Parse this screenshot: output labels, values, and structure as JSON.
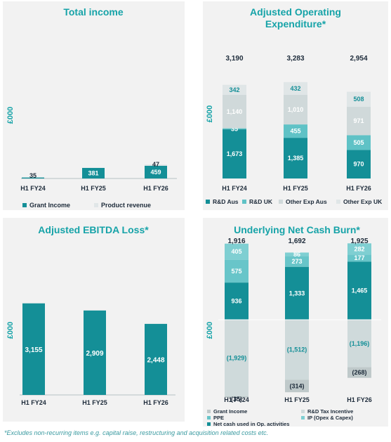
{
  "footnote": "*Excludes non-recurring items e.g. capital raise, restructuring and acquisition related costs etc.",
  "colors": {
    "title": "#16a3a8",
    "teal_dark": "#148f97",
    "teal_mid": "#5fc2c6",
    "light_grey": "#d0d9da",
    "lighter_grey": "#e0e6e7",
    "grey_neg": "#cfdadb",
    "grey_neg_small": "#bfc9ca",
    "text_dark": "#1d2b3a"
  },
  "chart_data": [
    {
      "type": "bar",
      "title": "Total income",
      "ylabel": "£000",
      "categories": [
        "H1 FY24",
        "H1 FY25",
        "H1 FY26"
      ],
      "series": [
        {
          "name": "Grant Income",
          "values": [
            35,
            381,
            459
          ]
        },
        {
          "name": "Product revenue",
          "values": [
            0,
            0,
            47
          ]
        }
      ],
      "labels": [
        [
          "35",
          "381",
          "459"
        ],
        [
          "",
          "",
          "47"
        ]
      ],
      "ylim": [
        0,
        3300
      ],
      "legend": "bottom"
    },
    {
      "type": "bar",
      "title": "Adjusted Operating Expenditure*",
      "ylabel": "£000",
      "categories": [
        "H1 FY24",
        "H1 FY25",
        "H1 FY26"
      ],
      "totals": [
        "3,190",
        "3,283",
        "2,954"
      ],
      "series": [
        {
          "name": "R&D Aus",
          "values": [
            1673,
            1385,
            970
          ]
        },
        {
          "name": "R&D UK",
          "values": [
            35,
            455,
            505
          ]
        },
        {
          "name": "Other Exp Aus",
          "values": [
            1140,
            1010,
            971
          ]
        },
        {
          "name": "Other Exp UK",
          "values": [
            342,
            432,
            508
          ]
        }
      ],
      "labels": [
        [
          "1,673",
          "1,385",
          "970"
        ],
        [
          "35",
          "455",
          "505"
        ],
        [
          "1,140",
          "1,010",
          "971"
        ],
        [
          "342",
          "432",
          "508"
        ]
      ],
      "ylim": [
        0,
        3300
      ],
      "legend": "bottom"
    },
    {
      "type": "bar",
      "title": "Adjusted EBITDA Loss*",
      "ylabel": "£000",
      "categories": [
        "H1 FY24",
        "H1 FY25",
        "H1 FY26"
      ],
      "values": [
        3155,
        2909,
        2448
      ],
      "labels": [
        "3,155",
        "2,909",
        "2,448"
      ],
      "ylim": [
        0,
        3300
      ]
    },
    {
      "type": "bar",
      "title": "Underlying Net Cash Burn*",
      "ylabel": "£000",
      "categories": [
        "H1 FY24",
        "H1 FY25",
        "H1 FY26"
      ],
      "totals": [
        "1,916",
        "1,692",
        "1,925"
      ],
      "series": [
        {
          "name": "Net cash used in Op. activities",
          "values": [
            936,
            1333,
            1465
          ]
        },
        {
          "name": "PPE",
          "values": [
            575,
            273,
            177
          ]
        },
        {
          "name": "IP (Opex & Capex)",
          "values": [
            405,
            86,
            282
          ]
        },
        {
          "name": "Grant Income",
          "values": [
            -35,
            -314,
            -268
          ]
        },
        {
          "name": "R&D Tax Incentive",
          "values": [
            -1929,
            -1512,
            -1196
          ]
        }
      ],
      "labels": [
        [
          "936",
          "1,333",
          "1,465"
        ],
        [
          "575",
          "273",
          "177"
        ],
        [
          "405",
          "86",
          "282"
        ],
        [
          "(35)",
          "(314)",
          "(268)"
        ],
        [
          "(1,929)",
          "(1,512)",
          "(1,196)"
        ]
      ],
      "ylim": [
        -1964,
        1925
      ],
      "legend": "bottom"
    }
  ]
}
